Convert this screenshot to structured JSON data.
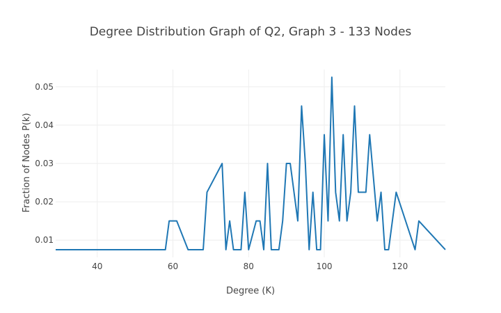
{
  "chart_data": {
    "type": "line",
    "title": "Degree Distribution Graph of Q2, Graph 3 - 133 Nodes",
    "xlabel": "Degree (K)",
    "ylabel": "Fraction of Nodes P(k)",
    "xlim": [
      29,
      132
    ],
    "ylim": [
      0.0055,
      0.0545
    ],
    "xticks": [
      40,
      60,
      80,
      100,
      120
    ],
    "yticks": [
      0.01,
      0.02,
      0.03,
      0.04,
      0.05
    ],
    "xtick_labels": [
      "40",
      "60",
      "80",
      "100",
      "120"
    ],
    "ytick_labels": [
      "0.01",
      "0.02",
      "0.03",
      "0.04",
      "0.05"
    ],
    "grid": true,
    "series": [
      {
        "color": "#1f77b4",
        "x": [
          29,
          58,
          59,
          61,
          64,
          68,
          69,
          73,
          74,
          75,
          76,
          78,
          79,
          80,
          82,
          83,
          84,
          85,
          86,
          88,
          89,
          90,
          91,
          93,
          94,
          95,
          96,
          97,
          98,
          99,
          100,
          101,
          102,
          103,
          104,
          105,
          106,
          107,
          108,
          109,
          111,
          112,
          114,
          115,
          116,
          117,
          119,
          124,
          125,
          132
        ],
        "y": [
          0.0075,
          0.0075,
          0.015,
          0.015,
          0.0075,
          0.0075,
          0.0225,
          0.03,
          0.0075,
          0.015,
          0.0075,
          0.0075,
          0.0225,
          0.0075,
          0.015,
          0.015,
          0.0075,
          0.03,
          0.0075,
          0.0075,
          0.015,
          0.03,
          0.03,
          0.015,
          0.045,
          0.03,
          0.0075,
          0.0225,
          0.0075,
          0.0075,
          0.0375,
          0.015,
          0.0525,
          0.0225,
          0.015,
          0.0375,
          0.015,
          0.0225,
          0.045,
          0.0225,
          0.0225,
          0.0375,
          0.015,
          0.0225,
          0.0075,
          0.0075,
          0.0225,
          0.0075,
          0.015,
          0.0075
        ]
      }
    ]
  }
}
